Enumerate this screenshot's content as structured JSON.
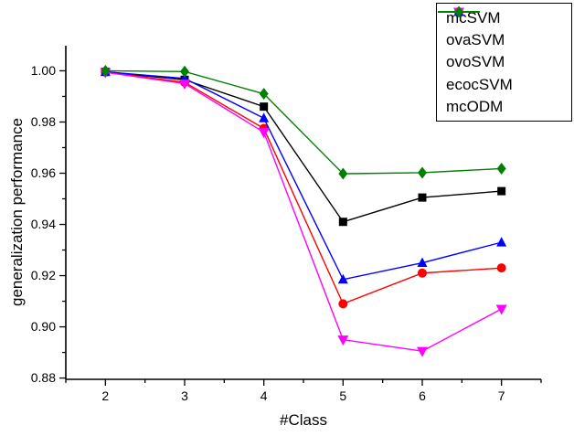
{
  "chart_data": {
    "type": "line",
    "x": [
      2,
      3,
      4,
      5,
      6,
      7
    ],
    "series": [
      {
        "name": "mcSVM",
        "color": "#000000",
        "marker": "square",
        "values": [
          0.9996,
          0.9965,
          0.986,
          0.941,
          0.9505,
          0.953
        ]
      },
      {
        "name": "ovaSVM",
        "color": "#ff0000",
        "marker": "circle",
        "values": [
          0.9995,
          0.9955,
          0.9775,
          0.909,
          0.921,
          0.923
        ]
      },
      {
        "name": "ovoSVM",
        "color": "#0000ff",
        "marker": "triangle-up",
        "values": [
          0.9996,
          0.997,
          0.9815,
          0.9185,
          0.925,
          0.933
        ]
      },
      {
        "name": "ecocSVM",
        "color": "#ff00ff",
        "marker": "triangle-down",
        "values": [
          0.9994,
          0.995,
          0.976,
          0.895,
          0.8905,
          0.907
        ]
      },
      {
        "name": "mcODM",
        "color": "#008000",
        "marker": "diamond",
        "values": [
          1.0,
          0.9997,
          0.991,
          0.9598,
          0.9602,
          0.9618
        ]
      }
    ],
    "title": "",
    "xlabel": "#Class",
    "ylabel": "generalization performance",
    "xlim": [
      1.5,
      7.5
    ],
    "ylim": [
      0.8795,
      1.0098
    ],
    "xtick_labels": [
      "2",
      "3",
      "4",
      "5",
      "6",
      "7"
    ],
    "ytick_labels": [
      "0.88",
      "0.90",
      "0.92",
      "0.94",
      "0.96",
      "0.98",
      "1.00"
    ],
    "x_minor_step": 0.5,
    "y_minor_step": 0.01,
    "grid": false,
    "legend_position": "top-right",
    "legend_entries": [
      "mcSVM",
      "ovaSVM",
      "ovoSVM",
      "ecocSVM",
      "mcODM"
    ]
  }
}
